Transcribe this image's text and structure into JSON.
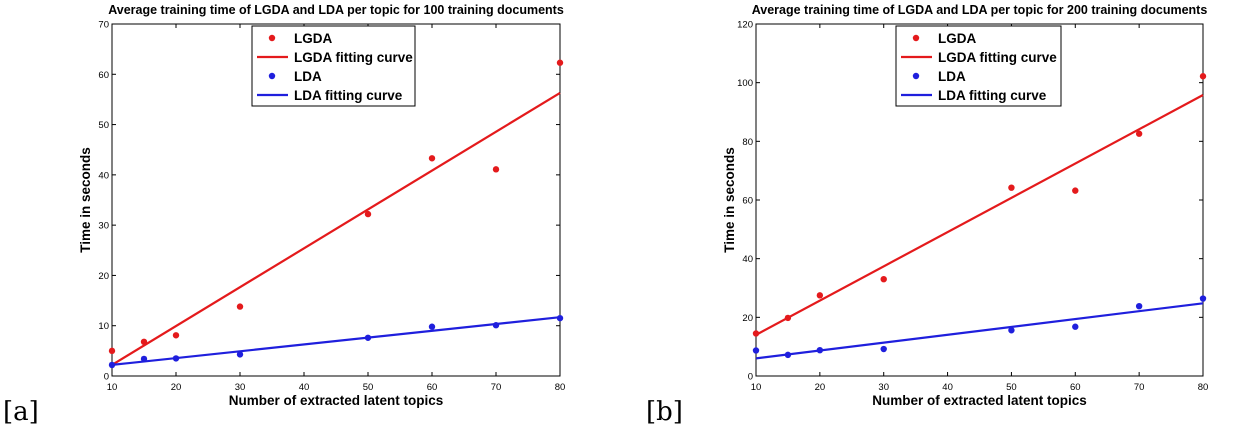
{
  "panel_tags": [
    "[a]",
    "[b]"
  ],
  "chart_data": [
    {
      "type": "scatter",
      "title": "Average training time of LGDA and LDA per topic for 100 training documents",
      "xlabel": "Number of extracted latent topics",
      "ylabel": "Time in seconds",
      "xlim": [
        10,
        80
      ],
      "ylim": [
        0,
        70
      ],
      "xticks": [
        10,
        20,
        30,
        40,
        50,
        60,
        70,
        80
      ],
      "yticks": [
        0,
        10,
        20,
        30,
        40,
        50,
        60,
        70
      ],
      "grid": false,
      "legend_position": "top-center",
      "series": [
        {
          "name": "LGDA",
          "kind": "points",
          "color": "#e41a1c",
          "x": [
            10,
            15,
            20,
            30,
            50,
            60,
            70,
            80
          ],
          "y": [
            5.0,
            6.8,
            8.1,
            13.8,
            32.2,
            43.3,
            41.1,
            62.3
          ]
        },
        {
          "name": "LGDA fitting curve",
          "kind": "line",
          "color": "#e41a1c",
          "x": [
            10,
            80
          ],
          "y": [
            2.2,
            56.3
          ]
        },
        {
          "name": "LDA",
          "kind": "points",
          "color": "#1f1fdd",
          "x": [
            10,
            15,
            20,
            30,
            50,
            60,
            70,
            80
          ],
          "y": [
            2.2,
            3.4,
            3.5,
            4.3,
            7.6,
            9.8,
            10.1,
            11.5
          ]
        },
        {
          "name": "LDA fitting curve",
          "kind": "line",
          "color": "#1f1fdd",
          "x": [
            10,
            80
          ],
          "y": [
            2.2,
            11.7
          ]
        }
      ]
    },
    {
      "type": "scatter",
      "title": "Average training time of LGDA and LDA per topic for 200 training documents",
      "xlabel": "Number of extracted latent topics",
      "ylabel": "Time in seconds",
      "xlim": [
        10,
        80
      ],
      "ylim": [
        0,
        120
      ],
      "xticks": [
        10,
        20,
        30,
        40,
        50,
        60,
        70,
        80
      ],
      "yticks": [
        0,
        20,
        40,
        60,
        80,
        100,
        120
      ],
      "grid": false,
      "legend_position": "top-center",
      "series": [
        {
          "name": "LGDA",
          "kind": "points",
          "color": "#e41a1c",
          "x": [
            10,
            15,
            20,
            30,
            50,
            60,
            70,
            80
          ],
          "y": [
            14.5,
            19.8,
            27.5,
            33.0,
            64.2,
            63.2,
            82.6,
            102.2
          ]
        },
        {
          "name": "LGDA fitting curve",
          "kind": "line",
          "color": "#e41a1c",
          "x": [
            10,
            80
          ],
          "y": [
            14.0,
            95.8
          ]
        },
        {
          "name": "LDA",
          "kind": "points",
          "color": "#1f1fdd",
          "x": [
            10,
            15,
            20,
            30,
            50,
            60,
            70,
            80
          ],
          "y": [
            8.7,
            7.2,
            8.8,
            9.2,
            15.6,
            16.8,
            23.8,
            26.4
          ]
        },
        {
          "name": "LDA fitting curve",
          "kind": "line",
          "color": "#1f1fdd",
          "x": [
            10,
            80
          ],
          "y": [
            6.0,
            24.8
          ]
        }
      ]
    }
  ]
}
